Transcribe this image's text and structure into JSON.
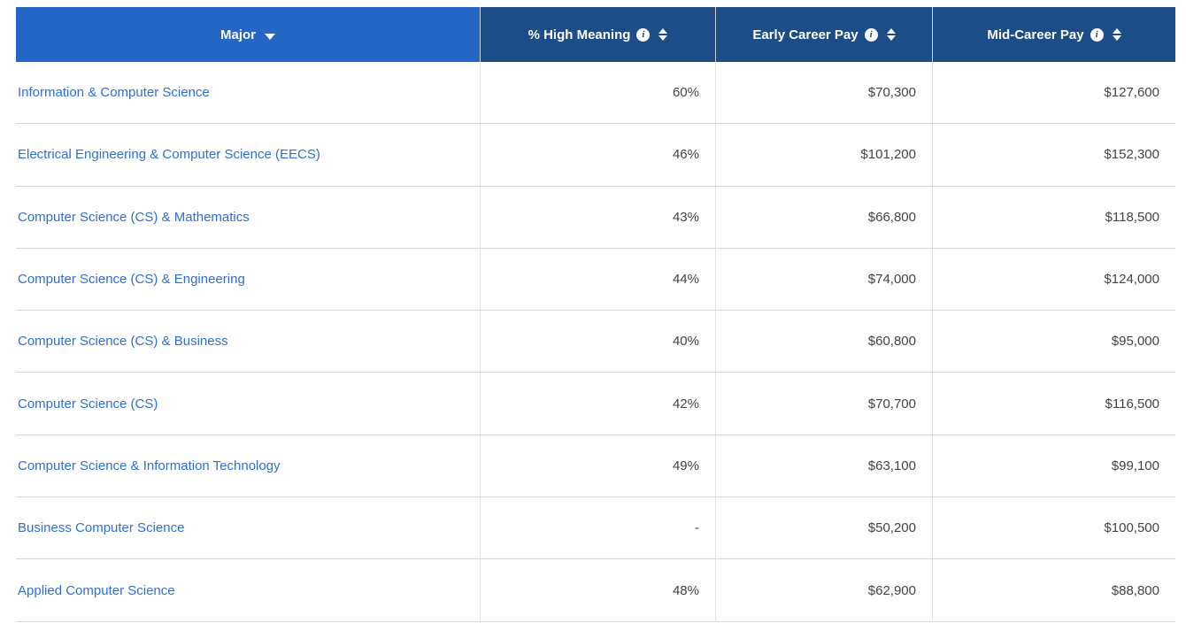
{
  "colors": {
    "header_major_bg": "#2366c5",
    "header_bg": "#1d4d89",
    "link_color": "#2f6fd4",
    "value_color": "#404448",
    "row_border": "#d8d8d8"
  },
  "icons": {
    "info_glyph": "i"
  },
  "table": {
    "columns": [
      {
        "label": "Major",
        "sorted": "desc",
        "has_info": false
      },
      {
        "label": "% High Meaning",
        "sorted": null,
        "has_info": true
      },
      {
        "label": "Early Career Pay",
        "sorted": null,
        "has_info": true
      },
      {
        "label": "Mid-Career Pay",
        "sorted": null,
        "has_info": true
      }
    ],
    "rows": [
      {
        "major": "Information & Computer Science",
        "high_meaning": "60%",
        "early_pay": "$70,300",
        "mid_pay": "$127,600"
      },
      {
        "major": "Electrical Engineering & Computer Science (EECS)",
        "high_meaning": "46%",
        "early_pay": "$101,200",
        "mid_pay": "$152,300"
      },
      {
        "major": "Computer Science (CS) & Mathematics",
        "high_meaning": "43%",
        "early_pay": "$66,800",
        "mid_pay": "$118,500"
      },
      {
        "major": "Computer Science (CS) & Engineering",
        "high_meaning": "44%",
        "early_pay": "$74,000",
        "mid_pay": "$124,000"
      },
      {
        "major": "Computer Science (CS) & Business",
        "high_meaning": "40%",
        "early_pay": "$60,800",
        "mid_pay": "$95,000"
      },
      {
        "major": "Computer Science (CS)",
        "high_meaning": "42%",
        "early_pay": "$70,700",
        "mid_pay": "$116,500"
      },
      {
        "major": "Computer Science & Information Technology",
        "high_meaning": "49%",
        "early_pay": "$63,100",
        "mid_pay": "$99,100"
      },
      {
        "major": "Business Computer Science",
        "high_meaning": "-",
        "early_pay": "$50,200",
        "mid_pay": "$100,500"
      },
      {
        "major": "Applied Computer Science",
        "high_meaning": "48%",
        "early_pay": "$62,900",
        "mid_pay": "$88,800"
      }
    ]
  }
}
